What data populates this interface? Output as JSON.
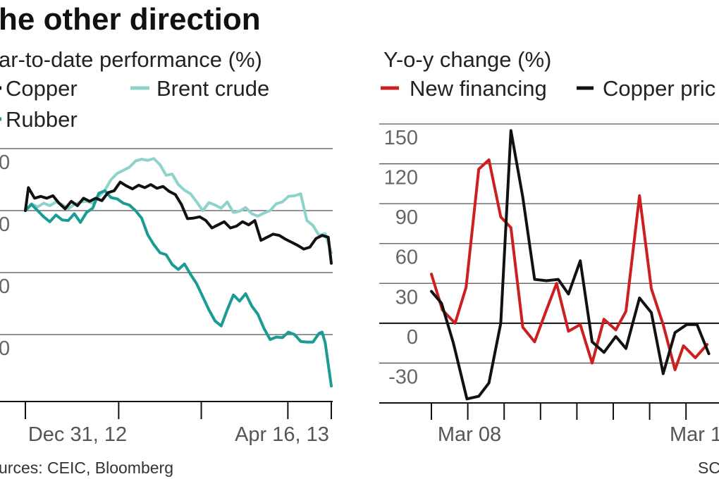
{
  "colors": {
    "copper": "#111111",
    "brent": "#8ed3cb",
    "rubber": "#1a9b94",
    "financing": "#cc1f1f",
    "axis": "#111111",
    "grid": "#555555",
    "tick_text": "#666666"
  },
  "headline": "he other direction",
  "sources": "urces: CEIC, Bloomberg",
  "credit": "SC",
  "chart_data": [
    {
      "type": "line",
      "title": "ar-to-date performance (%)",
      "legend": [
        {
          "key": "copper",
          "label": "Copper"
        },
        {
          "key": "brent",
          "label": "Brent crude"
        },
        {
          "key": "rubber",
          "label": "Rubber"
        }
      ],
      "ytick_labels": [
        "0",
        "0",
        "0",
        "0"
      ],
      "x_labels": [
        "Dec 31, 12",
        "Apr 16, 13"
      ],
      "x_range": [
        0,
        100
      ],
      "ylim": [
        -30,
        10
      ],
      "y_grid": [
        10,
        0,
        -10,
        -20
      ],
      "series": [
        {
          "name": "Copper",
          "key": "copper",
          "x": [
            0,
            1,
            3,
            5,
            7,
            9,
            11,
            13,
            15,
            17,
            19,
            21,
            23,
            25,
            27,
            29,
            31,
            33,
            35,
            37,
            39,
            41,
            43,
            45,
            47,
            49,
            51,
            53,
            55,
            57,
            59,
            61,
            63,
            65,
            67,
            69,
            71,
            73,
            75,
            77,
            79,
            81,
            83,
            85,
            87,
            89,
            91,
            93,
            95,
            97,
            99,
            100
          ],
          "y": [
            0,
            3.7,
            2,
            2.3,
            2,
            2.4,
            1.2,
            0.3,
            1.5,
            0.8,
            2,
            1.5,
            2,
            1.6,
            2.9,
            3.2,
            4.6,
            4,
            3.5,
            4.1,
            3.7,
            4.2,
            3.6,
            3.9,
            3.1,
            2.6,
            1,
            -1.3,
            -1.2,
            -1,
            -1.6,
            -2.8,
            -2.3,
            -1.8,
            -2.8,
            -2.5,
            -1.8,
            -2.3,
            -1.6,
            -4.8,
            -4.3,
            -3.8,
            -4,
            -4.6,
            -5.1,
            -5.6,
            -6.2,
            -5.9,
            -4.5,
            -4,
            -4.3,
            -8.5
          ]
        },
        {
          "name": "Brent crude",
          "key": "brent",
          "x": [
            0,
            2,
            4,
            6,
            8,
            10,
            12,
            14,
            16,
            18,
            20,
            22,
            24,
            26,
            28,
            30,
            32,
            34,
            36,
            38,
            40,
            42,
            44,
            46,
            48,
            50,
            52,
            54,
            56,
            58,
            60,
            62,
            64,
            66,
            68,
            70,
            72,
            74,
            76,
            78,
            80,
            82,
            84,
            86,
            88,
            90,
            92,
            94,
            96,
            98,
            100
          ],
          "y": [
            0,
            1.1,
            0.6,
            1.2,
            0.8,
            1.4,
            1,
            0.3,
            1,
            1.4,
            1.5,
            1.2,
            2.3,
            3.3,
            5,
            6,
            6.5,
            7,
            8,
            8.3,
            8.1,
            8.4,
            7.4,
            5.7,
            5.9,
            4.2,
            3.3,
            2.7,
            1.4,
            0,
            1.3,
            0.9,
            0.4,
            1.4,
            -0.3,
            -0.1,
            0.5,
            -0.5,
            -0.9,
            -0.4,
            0,
            1.1,
            1.4,
            2.3,
            2.4,
            2.7,
            -1.6,
            -2.4,
            -4,
            -3.7,
            -6.8
          ]
        },
        {
          "name": "Rubber",
          "key": "rubber",
          "x": [
            0,
            2,
            4,
            6,
            8,
            10,
            12,
            14,
            16,
            18,
            20,
            22,
            24,
            26,
            28,
            30,
            32,
            34,
            36,
            38,
            40,
            42,
            44,
            46,
            48,
            50,
            52,
            54,
            56,
            58,
            60,
            62,
            64,
            66,
            68,
            70,
            72,
            74,
            76,
            78,
            80,
            82,
            84,
            86,
            88,
            90,
            92,
            94,
            96,
            97,
            98,
            100
          ],
          "y": [
            0,
            1,
            0,
            -1,
            -1.8,
            -0.7,
            -1.5,
            -1.6,
            -0.5,
            -1.9,
            -0.3,
            0.4,
            2.8,
            3.2,
            2.1,
            1.9,
            1.2,
            0.9,
            0,
            -1.2,
            -3.9,
            -5.5,
            -6.8,
            -7.1,
            -8.7,
            -9.5,
            -8.6,
            -10.3,
            -11.8,
            -13.9,
            -16,
            -17.8,
            -18.6,
            -16,
            -13.6,
            -14.6,
            -13.4,
            -15.4,
            -16.7,
            -19,
            -20.8,
            -20.4,
            -20.5,
            -19.6,
            -20,
            -21.1,
            -21.2,
            -21.2,
            -19.8,
            -19.6,
            -21.3,
            -28.3
          ]
        }
      ]
    },
    {
      "type": "line",
      "title": "Y-o-y change (%)",
      "legend": [
        {
          "key": "financing",
          "label": "New financing"
        },
        {
          "key": "copper",
          "label": "Copper pric"
        }
      ],
      "ytick_labels": [
        "150",
        "120",
        "90",
        "60",
        "30",
        "0",
        "-30"
      ],
      "y_values": [
        150,
        120,
        90,
        60,
        30,
        0,
        -30
      ],
      "x_labels": [
        "Mar 08",
        "Mar 1"
      ],
      "x_range": [
        0,
        17
      ],
      "ylim": [
        -60,
        150
      ],
      "zero_line": 0,
      "series": [
        {
          "name": "New financing",
          "key": "financing",
          "x": [
            0,
            0.65,
            1.4,
            2.05,
            2.8,
            3.4,
            4.1,
            4.7,
            5.4,
            6.1,
            6.8,
            7.4,
            8.1,
            8.8,
            9.5,
            10.2,
            10.9,
            11.5,
            12.3,
            13,
            13.7,
            14.4,
            14.9,
            15.6,
            16.3
          ],
          "y": [
            37,
            10,
            0,
            27,
            116,
            123,
            80,
            72,
            -3,
            -14,
            10,
            30,
            -6,
            -1,
            -30,
            3,
            -5,
            9,
            96,
            26,
            -1,
            -35,
            -17,
            -26,
            -16
          ]
        },
        {
          "name": "Copper price",
          "key": "copper",
          "x": [
            0,
            0.6,
            1.3,
            2.1,
            2.8,
            3.4,
            4.1,
            4.7,
            5.4,
            6.1,
            6.8,
            7.5,
            8.1,
            8.8,
            9.5,
            10.2,
            10.9,
            11.5,
            12.3,
            13,
            13.7,
            14.4,
            15.1,
            15.7,
            16.4
          ],
          "y": [
            24,
            15,
            -15,
            -57,
            -55,
            -45,
            0,
            145,
            95,
            33,
            32,
            33,
            22,
            47,
            -14,
            -22,
            -10,
            -19,
            19,
            8,
            -38,
            -7,
            -1,
            -1,
            -23
          ]
        }
      ]
    }
  ]
}
